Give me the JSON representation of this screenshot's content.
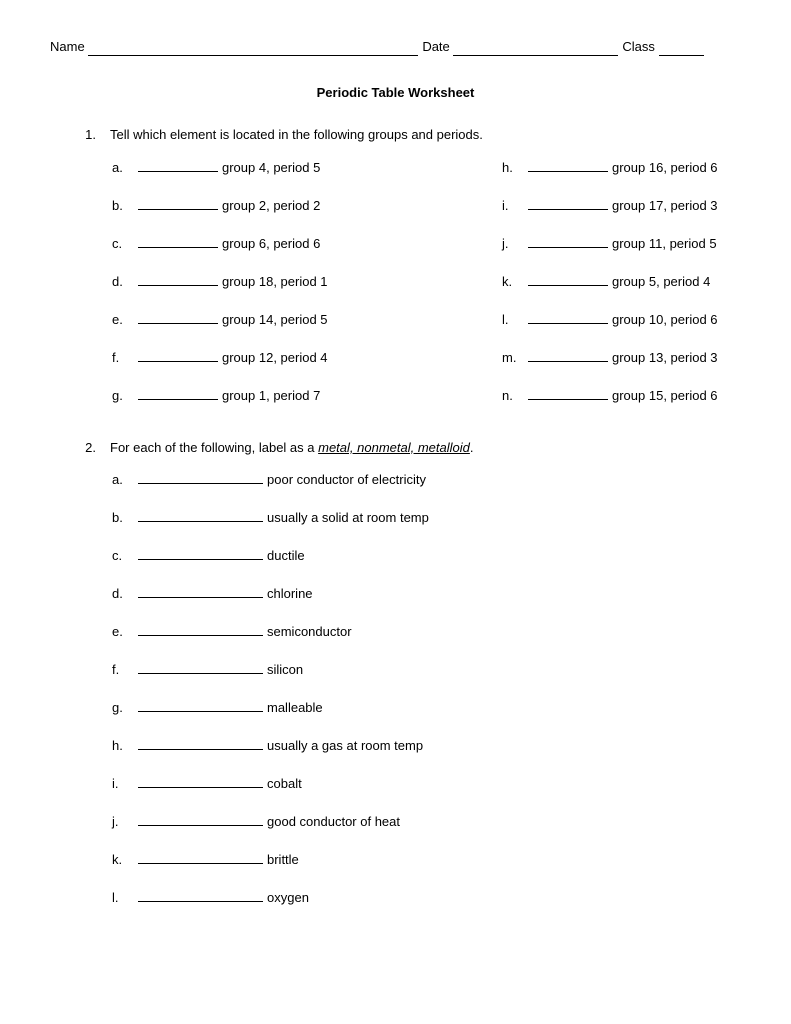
{
  "header": {
    "name_label": "Name",
    "date_label": "Date",
    "class_label": "Class"
  },
  "title": "Periodic Table Worksheet",
  "q1": {
    "number": "1.",
    "prompt": "Tell which element is located in the following groups and periods.",
    "left": [
      {
        "letter": "a.",
        "desc": "group 4, period 5"
      },
      {
        "letter": "b.",
        "desc": "group 2, period 2"
      },
      {
        "letter": "c.",
        "desc": "group 6, period 6"
      },
      {
        "letter": "d.",
        "desc": "group 18, period 1"
      },
      {
        "letter": "e.",
        "desc": "group 14, period 5"
      },
      {
        "letter": "f.",
        "desc": "group 12, period 4"
      },
      {
        "letter": "g.",
        "desc": "group 1, period 7"
      }
    ],
    "right": [
      {
        "letter": "h.",
        "desc": "group 16, period 6"
      },
      {
        "letter": "i.",
        "desc": "group 17, period 3"
      },
      {
        "letter": "j.",
        "desc": "group 11, period 5"
      },
      {
        "letter": "k.",
        "desc": "group 5, period 4"
      },
      {
        "letter": "l.",
        "desc": "group 10, period 6"
      },
      {
        "letter": "m.",
        "desc": "group 13, period 3"
      },
      {
        "letter": "n.",
        "desc": "group 15, period 6"
      }
    ]
  },
  "q2": {
    "number": "2.",
    "prompt_pre": "For each of the following, label as a ",
    "prompt_em": "metal, nonmetal, metalloid",
    "prompt_post": ".",
    "items": [
      {
        "letter": "a.",
        "desc": "poor conductor of electricity"
      },
      {
        "letter": "b.",
        "desc": "usually a solid at room temp"
      },
      {
        "letter": "c.",
        "desc": "ductile"
      },
      {
        "letter": "d.",
        "desc": "chlorine"
      },
      {
        "letter": "e.",
        "desc": "semiconductor"
      },
      {
        "letter": "f.",
        "desc": "silicon"
      },
      {
        "letter": "g.",
        "desc": "malleable"
      },
      {
        "letter": "h.",
        "desc": "usually a gas at room temp"
      },
      {
        "letter": "i.",
        "desc": "cobalt"
      },
      {
        "letter": "j.",
        "desc": "good conductor of heat"
      },
      {
        "letter": "k.",
        "desc": "brittle"
      },
      {
        "letter": "l.",
        "desc": "oxygen"
      }
    ]
  }
}
